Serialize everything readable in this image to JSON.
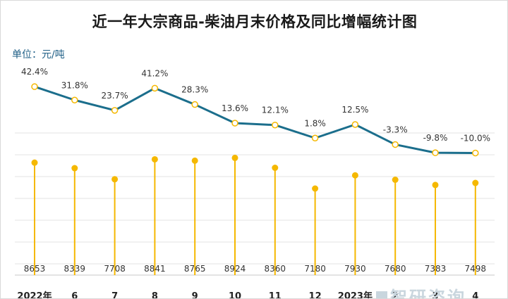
{
  "title": "近一年大宗商品-柴油月末价格及同比增幅统计图",
  "unit_label": "单位：元/吨",
  "watermark": "智研咨询",
  "colors": {
    "line": "#1b6e8c",
    "bars": "#f5b800",
    "grid": "#e3e3e3",
    "text": "#333333"
  },
  "chart_data": {
    "type": "line+lollipop",
    "categories": [
      "2022年",
      "6",
      "7",
      "8",
      "9",
      "10",
      "11",
      "12",
      "2023年",
      "2",
      "3",
      "4"
    ],
    "series": [
      {
        "type": "bar",
        "values": [
          8653,
          8339,
          7708,
          8841,
          8765,
          8924,
          8360,
          7180,
          7930,
          7680,
          7383,
          7498
        ]
      },
      {
        "type": "line",
        "values": [
          42.4,
          31.8,
          23.7,
          41.2,
          28.3,
          13.6,
          12.1,
          1.8,
          12.5,
          -3.3,
          -9.8,
          -10.0
        ],
        "labels": [
          "42.4%",
          "31.8%",
          "23.7%",
          "41.2%",
          "28.3%",
          "13.6%",
          "12.1%",
          "1.8%",
          "12.5%",
          "-3.3%",
          "-9.8%",
          "-10.0%"
        ]
      }
    ],
    "grid": true,
    "legend": "none"
  }
}
